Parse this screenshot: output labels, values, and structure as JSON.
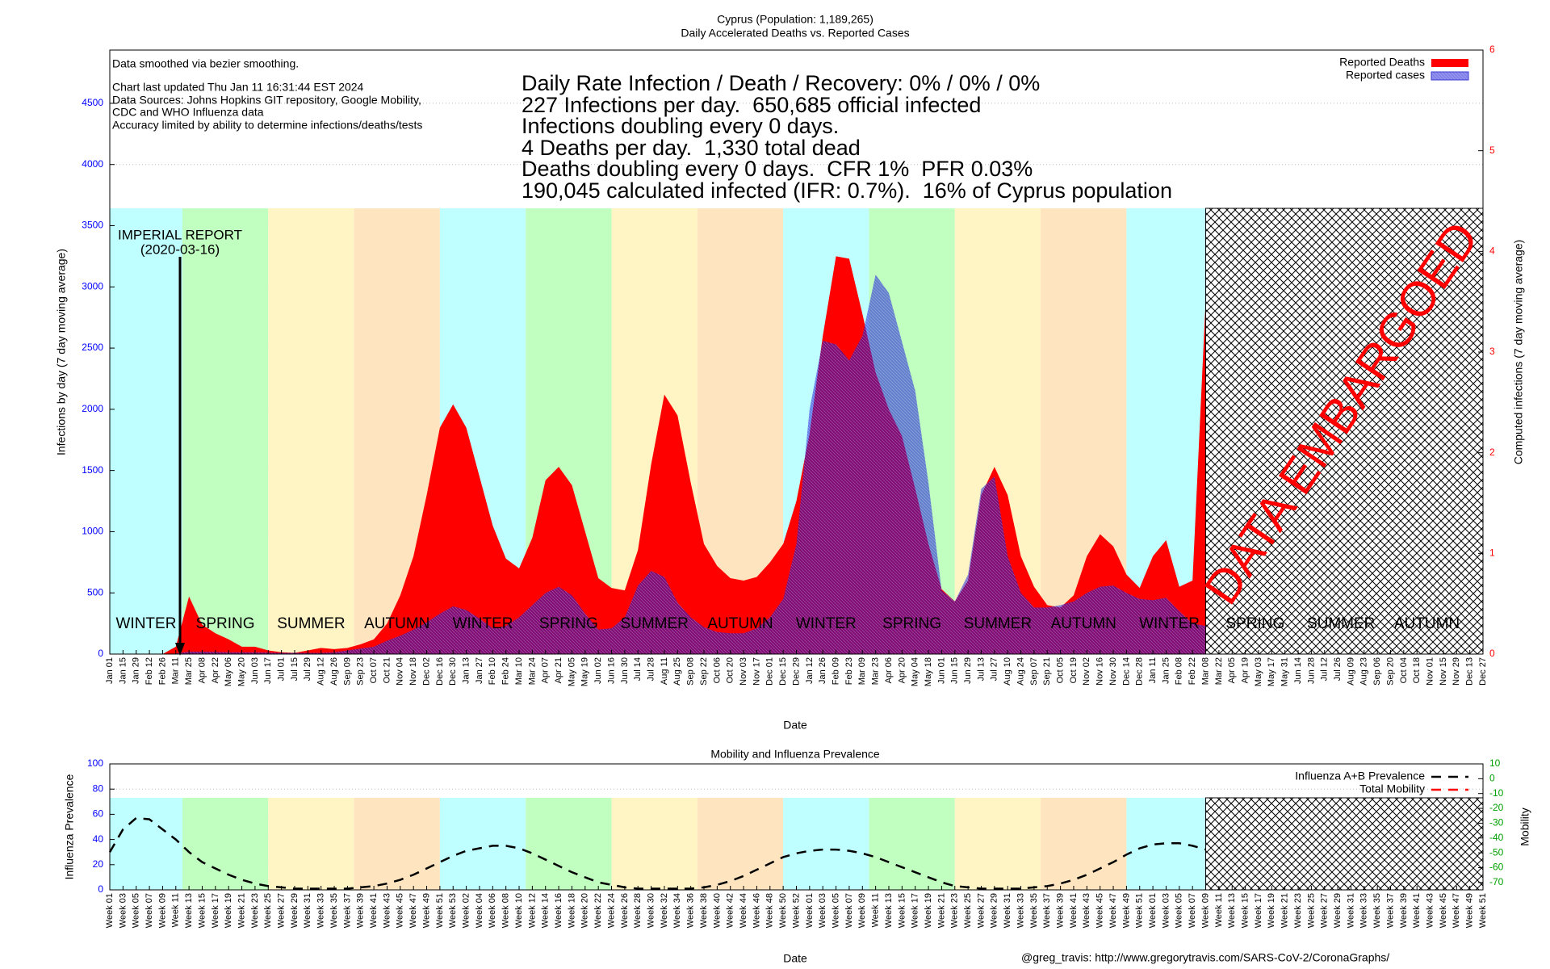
{
  "chart_data": [
    {
      "type": "area",
      "title": "Cyprus (Population: 1,189,265)",
      "subtitle": "Daily Accelerated Deaths vs. Reported Cases",
      "notes": [
        "Data smoothed via bezier smoothing.",
        "Chart last updated Thu Jan 11 16:31:44 EST 2024",
        "Data Sources: Johns Hopkins GIT repository, Google Mobility,",
        "CDC and WHO Influenza data",
        "Accuracy limited by ability to determine infections/deaths/tests"
      ],
      "stats": [
        "Daily Rate Infection / Death / Recovery: 0% / 0% / 0%",
        "227 Infections per day.  650,685 official infected",
        "Infections doubling every 0 days.",
        "4 Deaths per day.  1,330 total dead",
        "Deaths doubling every 0 days.  CFR 1%  PFR 0.03%",
        "190,045 calculated infected (IFR: 0.7%).  16% of Cyprus population"
      ],
      "annotation": {
        "text": "IMPERIAL REPORT",
        "date": "(2020-03-16)"
      },
      "embargo": "DATA EMBARGOED",
      "seasons": [
        "WINTER",
        "SPRING",
        "SUMMER",
        "AUTUMN",
        "WINTER",
        "SPRING",
        "SUMMER",
        "AUTUMN",
        "WINTER",
        "SPRING",
        "SUMMER",
        "AUTUMN",
        "WINTER",
        "SPRING",
        "SUMMER",
        "AUTUMN"
      ],
      "season_colors": {
        "WINTER": "#c0ffff",
        "SPRING": "#c0ffc0",
        "SUMMER": "#fff5c4",
        "AUTUMN": "#ffe4c0"
      },
      "xlabel": "Date",
      "ylabel": "Infections by day (7 day moving average)",
      "y2label": "Computed infections (7 day moving average)",
      "categories": [
        "Jan 01",
        "Jan 15",
        "Jan 29",
        "Feb 12",
        "Feb 26",
        "Mar 11",
        "Mar 25",
        "Apr 08",
        "Apr 22",
        "May 06",
        "May 20",
        "Jun 03",
        "Jun 17",
        "Jul 01",
        "Jul 15",
        "Jul 29",
        "Aug 12",
        "Aug 26",
        "Sep 09",
        "Sep 23",
        "Oct 07",
        "Oct 21",
        "Nov 04",
        "Nov 18",
        "Dec 02",
        "Dec 16",
        "Dec 30",
        "Jan 13",
        "Jan 27",
        "Feb 10",
        "Feb 24",
        "Mar 10",
        "Mar 24",
        "Apr 07",
        "Apr 21",
        "May 05",
        "May 19",
        "Jun 02",
        "Jun 16",
        "Jun 30",
        "Jul 14",
        "Jul 28",
        "Aug 11",
        "Aug 25",
        "Sep 08",
        "Sep 22",
        "Oct 06",
        "Oct 20",
        "Nov 03",
        "Nov 17",
        "Dec 01",
        "Dec 15",
        "Dec 29",
        "Jan 12",
        "Jan 26",
        "Feb 09",
        "Feb 23",
        "Mar 09",
        "Mar 23",
        "Apr 06",
        "Apr 20",
        "May 04",
        "May 18",
        "Jun 01",
        "Jun 15",
        "Jun 29",
        "Jul 13",
        "Jul 27",
        "Aug 10",
        "Aug 24",
        "Sep 07",
        "Sep 21",
        "Oct 05",
        "Oct 19",
        "Nov 02",
        "Nov 16",
        "Nov 30",
        "Dec 14",
        "Dec 28",
        "Jan 11",
        "Jan 25",
        "Feb 08",
        "Feb 22",
        "Mar 08",
        "Mar 22",
        "Apr 05",
        "Apr 19",
        "May 03",
        "May 17",
        "May 31",
        "Jun 14",
        "Jun 28",
        "Jul 12",
        "Jul 26",
        "Aug 09",
        "Aug 23",
        "Sep 06",
        "Sep 20",
        "Oct 04",
        "Oct 18",
        "Nov 01",
        "Nov 15",
        "Nov 29",
        "Dec 13",
        "Dec 27"
      ],
      "series": [
        {
          "name": "Reported Deaths",
          "color": "#ff0000",
          "values": [
            0,
            0,
            0,
            0,
            0,
            60,
            470,
            240,
            170,
            120,
            60,
            60,
            30,
            15,
            10,
            30,
            50,
            40,
            50,
            80,
            120,
            250,
            480,
            800,
            1300,
            1850,
            2040,
            1850,
            1450,
            1050,
            780,
            700,
            950,
            1420,
            1530,
            1380,
            1000,
            620,
            540,
            520,
            850,
            1550,
            2120,
            1950,
            1400,
            900,
            720,
            620,
            600,
            630,
            750,
            900,
            1250,
            1800,
            2600,
            3250,
            3230,
            2780,
            2300,
            2000,
            1780,
            1350,
            900,
            530,
            430,
            600,
            1300,
            1530,
            1300,
            800,
            550,
            400,
            380,
            480,
            800,
            980,
            880,
            650,
            540,
            800,
            930,
            550,
            600,
            2900,
            null,
            null,
            null,
            null,
            null,
            null,
            null,
            null,
            null,
            null,
            null,
            null,
            null,
            null,
            null,
            null,
            null,
            null,
            null,
            null,
            null
          ]
        },
        {
          "name": "Reported cases",
          "color": "#3a3ad0",
          "values": [
            0,
            0,
            0,
            0,
            0,
            5,
            20,
            20,
            18,
            15,
            15,
            15,
            12,
            10,
            10,
            10,
            10,
            15,
            30,
            45,
            60,
            110,
            150,
            200,
            260,
            330,
            390,
            360,
            290,
            210,
            230,
            300,
            400,
            500,
            550,
            480,
            330,
            200,
            210,
            300,
            560,
            680,
            630,
            420,
            300,
            220,
            180,
            170,
            170,
            210,
            300,
            450,
            900,
            2000,
            2560,
            2530,
            2400,
            2600,
            3100,
            2950,
            2550,
            2150,
            1400,
            520,
            430,
            650,
            1350,
            1450,
            800,
            500,
            380,
            380,
            400,
            430,
            500,
            550,
            560,
            500,
            450,
            440,
            460,
            350,
            250,
            230,
            null,
            null,
            null,
            null,
            null,
            null,
            null,
            null,
            null,
            null,
            null,
            null,
            null,
            null,
            null,
            null,
            null,
            null,
            null,
            null,
            null
          ]
        }
      ],
      "ylim": [
        0,
        4935
      ],
      "yticks": [
        0,
        500,
        1000,
        1500,
        2000,
        2500,
        3000,
        3500,
        4000,
        4500
      ],
      "y2lim": [
        0,
        6
      ],
      "y2ticks": [
        0,
        1,
        2,
        3,
        4,
        5,
        6
      ],
      "grid": true,
      "legend": "upper right"
    },
    {
      "type": "line",
      "title": "Mobility and Influenza Prevalence",
      "xlabel": "Date",
      "ylabel": "Influenza Prevalence",
      "y2label": "Mobility",
      "categories": [
        "Week 01",
        "Week 03",
        "Week 05",
        "Week 07",
        "Week 09",
        "Week 11",
        "Week 13",
        "Week 15",
        "Week 17",
        "Week 19",
        "Week 21",
        "Week 23",
        "Week 25",
        "Week 27",
        "Week 29",
        "Week 31",
        "Week 33",
        "Week 35",
        "Week 37",
        "Week 39",
        "Week 41",
        "Week 43",
        "Week 45",
        "Week 47",
        "Week 49",
        "Week 51",
        "Week 53",
        "Week 02",
        "Week 04",
        "Week 06",
        "Week 08",
        "Week 10",
        "Week 12",
        "Week 14",
        "Week 16",
        "Week 18",
        "Week 20",
        "Week 22",
        "Week 24",
        "Week 26",
        "Week 28",
        "Week 30",
        "Week 32",
        "Week 34",
        "Week 36",
        "Week 38",
        "Week 40",
        "Week 42",
        "Week 44",
        "Week 46",
        "Week 48",
        "Week 50",
        "Week 52",
        "Week 01",
        "Week 03",
        "Week 05",
        "Week 07",
        "Week 09",
        "Week 11",
        "Week 13",
        "Week 15",
        "Week 17",
        "Week 19",
        "Week 21",
        "Week 23",
        "Week 25",
        "Week 27",
        "Week 29",
        "Week 31",
        "Week 33",
        "Week 35",
        "Week 37",
        "Week 39",
        "Week 41",
        "Week 43",
        "Week 45",
        "Week 47",
        "Week 49",
        "Week 51",
        "Week 01",
        "Week 03",
        "Week 05",
        "Week 07",
        "Week 09",
        "Week 11",
        "Week 13",
        "Week 15",
        "Week 17",
        "Week 19",
        "Week 21",
        "Week 23",
        "Week 25",
        "Week 27",
        "Week 29",
        "Week 31",
        "Week 33",
        "Week 35",
        "Week 37",
        "Week 39",
        "Week 41",
        "Week 43",
        "Week 45",
        "Week 47",
        "Week 49",
        "Week 51"
      ],
      "series": [
        {
          "name": "Influenza A+B Prevalence",
          "color": "#000000",
          "values": [
            30,
            48,
            57,
            56,
            48,
            40,
            30,
            22,
            17,
            12,
            8,
            5,
            3,
            2,
            1,
            1,
            1,
            1,
            1,
            2,
            3,
            5,
            8,
            12,
            17,
            22,
            27,
            31,
            33,
            35,
            35,
            33,
            29,
            24,
            19,
            14,
            10,
            6,
            4,
            2,
            1,
            1,
            1,
            1,
            1,
            2,
            4,
            7,
            11,
            16,
            21,
            26,
            29,
            31,
            32,
            32,
            31,
            29,
            26,
            22,
            18,
            14,
            10,
            6,
            3,
            2,
            1,
            1,
            1,
            1,
            2,
            3,
            5,
            8,
            12,
            17,
            22,
            28,
            33,
            36,
            37,
            37,
            35,
            32,
            null,
            null,
            null,
            null,
            null,
            null,
            null,
            null,
            null,
            null,
            null,
            null,
            null,
            null,
            null,
            null,
            null,
            null,
            null,
            null,
            null
          ]
        },
        {
          "name": "Total Mobility",
          "color": "#ff0000",
          "axis": "y2",
          "values": [
            null,
            null,
            null,
            null,
            null,
            null,
            null,
            null,
            null,
            null,
            null,
            null,
            null,
            null,
            null,
            null,
            null,
            null,
            null,
            null,
            null,
            null,
            null,
            null,
            null,
            null,
            null,
            null,
            null,
            null,
            null,
            null,
            null,
            null,
            null,
            null,
            null,
            null,
            null,
            null,
            null,
            null,
            null,
            null,
            null,
            null,
            null,
            null,
            null,
            null,
            null,
            null,
            null,
            null,
            null,
            null,
            null,
            null,
            null,
            null,
            null,
            null,
            null,
            null,
            null,
            null,
            null,
            null,
            null,
            null,
            null,
            null,
            null,
            null,
            null,
            null,
            null,
            null,
            null,
            null,
            null,
            null,
            null,
            null,
            null,
            null,
            null,
            null,
            null,
            null,
            null,
            null,
            null,
            null,
            null,
            null,
            null,
            null,
            null,
            null,
            null,
            null,
            null,
            null,
            null
          ]
        }
      ],
      "ylim": [
        0,
        100
      ],
      "yticks": [
        0,
        20,
        40,
        60,
        80,
        100
      ],
      "y2lim": [
        -75,
        10
      ],
      "y2ticks": [
        10,
        0,
        -10,
        -20,
        -30,
        -40,
        -50,
        -60,
        -70
      ],
      "grid": true,
      "legend": "upper right"
    }
  ],
  "credit": "@greg_travis: http://www.gregorytravis.com/SARS-CoV-2/CoronaGraphs/"
}
